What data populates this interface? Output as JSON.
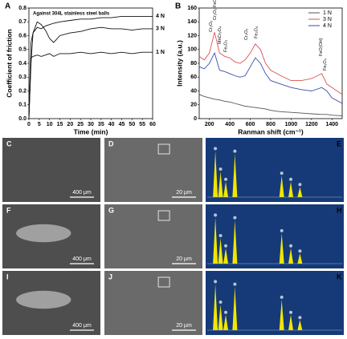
{
  "chart_data": [
    {
      "type": "line",
      "panel": "A",
      "annotation": "Against 304L stainless steel balls",
      "xlabel": "Time (min)",
      "ylabel": "Coefficient of friction",
      "x": [
        0,
        1,
        2,
        4,
        6,
        8,
        10,
        12,
        15,
        20,
        25,
        30,
        35,
        40,
        45,
        50,
        55,
        60
      ],
      "series": [
        {
          "name": "4 N",
          "color": "#111111",
          "values": [
            0,
            0.55,
            0.62,
            0.66,
            0.65,
            0.67,
            0.68,
            0.69,
            0.7,
            0.71,
            0.72,
            0.72,
            0.73,
            0.73,
            0.74,
            0.74,
            0.74,
            0.74
          ]
        },
        {
          "name": "3 N",
          "color": "#111111",
          "values": [
            0,
            0.4,
            0.62,
            0.7,
            0.68,
            0.64,
            0.58,
            0.55,
            0.6,
            0.62,
            0.63,
            0.65,
            0.66,
            0.65,
            0.65,
            0.64,
            0.65,
            0.65
          ]
        },
        {
          "name": "1 N",
          "color": "#111111",
          "values": [
            0,
            0.44,
            0.45,
            0.46,
            0.45,
            0.46,
            0.47,
            0.45,
            0.47,
            0.47,
            0.48,
            0.47,
            0.48,
            0.47,
            0.48,
            0.47,
            0.48,
            0.48
          ]
        }
      ],
      "xlim": [
        0,
        60
      ],
      "xticks": [
        0,
        5,
        10,
        15,
        20,
        25,
        30,
        35,
        40,
        45,
        50,
        55,
        60
      ],
      "ylim": [
        0,
        0.8
      ],
      "yticks": [
        {
          "value": 0,
          "label": "0.0"
        },
        0.1,
        0.2,
        0.3,
        0.4,
        0.5,
        0.6,
        0.7,
        0.8
      ],
      "legend": "line-end"
    },
    {
      "type": "line",
      "panel": "B",
      "xlabel": "Ranman shift (cm⁻¹)",
      "ylabel": "Intensity (a.u.)",
      "x": [
        100,
        150,
        200,
        250,
        300,
        350,
        400,
        450,
        500,
        550,
        600,
        650,
        700,
        750,
        800,
        900,
        1000,
        1100,
        1200,
        1300,
        1350,
        1400,
        1500
      ],
      "series": [
        {
          "name": "1 N",
          "color": "#555555",
          "values": [
            35,
            32,
            30,
            28,
            27,
            25,
            24,
            22,
            20,
            18,
            17,
            16,
            15,
            14,
            12,
            10,
            9,
            8,
            7,
            6,
            6,
            5,
            4
          ]
        },
        {
          "name": "3 N",
          "color": "#d9534f",
          "values": [
            90,
            85,
            95,
            125,
            95,
            90,
            88,
            82,
            80,
            85,
            95,
            108,
            100,
            80,
            70,
            62,
            55,
            55,
            58,
            65,
            50,
            45,
            35
          ]
        },
        {
          "name": "4 N",
          "color": "#3a4fa8",
          "values": [
            75,
            72,
            80,
            95,
            70,
            68,
            65,
            62,
            60,
            62,
            75,
            88,
            80,
            65,
            55,
            50,
            45,
            42,
            40,
            45,
            40,
            30,
            22
          ]
        }
      ],
      "annotations": [
        "Cr₂O₃",
        "Cr₂O₃ FeO(OH)",
        "MnCr₂O₄",
        "Fe₂O₃",
        "Cr₂O₃",
        "Fe₃O₄",
        "FeO(OH)",
        "Fe₂O₃"
      ],
      "xlim": [
        100,
        1500
      ],
      "xticks": [
        200,
        400,
        600,
        800,
        1000,
        1200,
        1400
      ],
      "ylim": [
        0,
        160
      ],
      "yticks": [
        0,
        20,
        40,
        60,
        80,
        100,
        120,
        140,
        160
      ],
      "legend": "upper right"
    }
  ],
  "panels": [
    {
      "label": "C",
      "scale_bar": "400 μm"
    },
    {
      "label": "D",
      "scale_bar": "20 μm"
    },
    {
      "label": "E"
    },
    {
      "label": "F",
      "scale_bar": "400 μm"
    },
    {
      "label": "G",
      "scale_bar": "20 μm"
    },
    {
      "label": "H"
    },
    {
      "label": "I",
      "scale_bar": "400 μm"
    },
    {
      "label": "J",
      "scale_bar": "20 μm"
    },
    {
      "label": "K"
    }
  ]
}
